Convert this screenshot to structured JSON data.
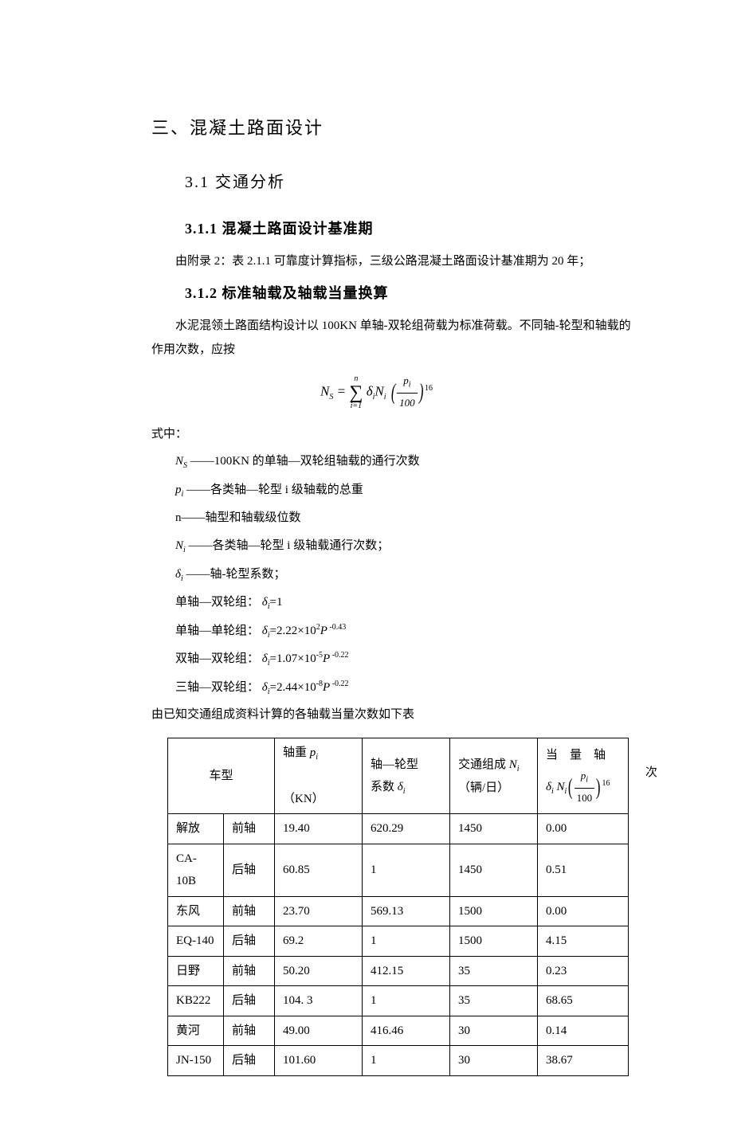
{
  "headings": {
    "h1": "三、混凝土路面设计",
    "h2": "3.1 交通分析",
    "h3a": "3.1.1 混凝土路面设计基准期",
    "h3b": "3.1.2 标准轴载及轴载当量换算"
  },
  "paras": {
    "p1": "由附录 2：表 2.1.1 可靠度计算指标，三级公路混凝土路面设计基准期为 20 年；",
    "p2": "　　水泥混领土路面结构设计以 100KN 单轴-双轮组荷载为标准荷载。不同轴-轮型和轴载的作用次数，应按",
    "shizhong": "式中：",
    "d_Ns": "——100KN 的单轴—双轮组轴载的通行次数",
    "d_pi": "——各类轴—轮型 i 级轴载的总重",
    "d_n": "n——轴型和轴载级位数",
    "d_Ni": "——各类轴—轮型 i 级轴载通行次数；",
    "d_di": "——轴-轮型系数；",
    "d_r1_label": "单轴—双轮组：",
    "d_r1_val": "=1",
    "d_r2_label": "单轴—单轮组：",
    "d_r2_val": "=2.22×10",
    "d_r2_exp": "2",
    "d_r2_pexp": " -0.43",
    "d_r3_label": "双轴—双轮组：",
    "d_r3_val": "=1.07×10",
    "d_r3_exp": "-5",
    "d_r3_pexp": " -0.22",
    "d_r4_label": "三轴—双轮组：",
    "d_r4_val": "=2.44×10",
    "d_r4_exp": "-8",
    "d_r4_pexp": " -0.22",
    "tabintro": "由已知交通组成资料计算的各轴载当量次数如下表"
  },
  "formula": {
    "lhs_sym": "N",
    "lhs_sub": "S",
    "eq": " = ",
    "sum_top": "n",
    "sum_bot": "i=1",
    "delta": "δ",
    "i": "i",
    "N": "N",
    "p": "p",
    "den": "100",
    "exp": "16"
  },
  "symbols": {
    "Ns": "N",
    "Ns_sub": "S",
    "pi": "p",
    "pi_sub": "i",
    "Ni": "N",
    "Ni_sub": "i",
    "di": "δ",
    "di_sub": "i",
    "P": "P"
  },
  "table": {
    "overflow_char": "次",
    "headers": {
      "c1": "车型",
      "c2a": "轴重 ",
      "c2b": "（KN）",
      "c3a": "轴—轮型",
      "c3b": "系数 ",
      "c4a": "交通组成 ",
      "c4b": "（辆/日）",
      "c5a": "当　量　轴",
      "c5_exp": "16"
    },
    "col_widths": [
      "70",
      "64",
      "110",
      "110",
      "110",
      "114"
    ],
    "rows": [
      {
        "m": "解放",
        "a": "前轴",
        "p": "19.40",
        "d": "620.29",
        "n": "1450",
        "e": "0.00"
      },
      {
        "m": "CA-10B",
        "a": "后轴",
        "p": "60.85",
        "d": "1",
        "n": "1450",
        "e": "0.51"
      },
      {
        "m": "东风",
        "a": "前轴",
        "p": "23.70",
        "d": "569.13",
        "n": "1500",
        "e": "0.00"
      },
      {
        "m": "EQ-140",
        "a": "后轴",
        "p": "69.2",
        "d": "1",
        "n": "1500",
        "e": "4.15"
      },
      {
        "m": "日野",
        "a": "前轴",
        "p": "50.20",
        "d": "412.15",
        "n": "35",
        "e": "0.23"
      },
      {
        "m": "KB222",
        "a": "后轴",
        "p": "104. 3",
        "d": "1",
        "n": "35",
        "e": "68.65"
      },
      {
        "m": "黄河",
        "a": "前轴",
        "p": "49.00",
        "d": "416.46",
        "n": "30",
        "e": "0.14"
      },
      {
        "m": "JN-150",
        "a": "后轴",
        "p": "101.60",
        "d": "1",
        "n": "30",
        "e": "38.67"
      }
    ]
  },
  "style": {
    "text_color": "#000000",
    "bg_color": "#ffffff",
    "border_color": "#000000",
    "body_fontsize": 15,
    "h1_fontsize": 22,
    "h2_fontsize": 20,
    "h3_fontsize": 18
  }
}
